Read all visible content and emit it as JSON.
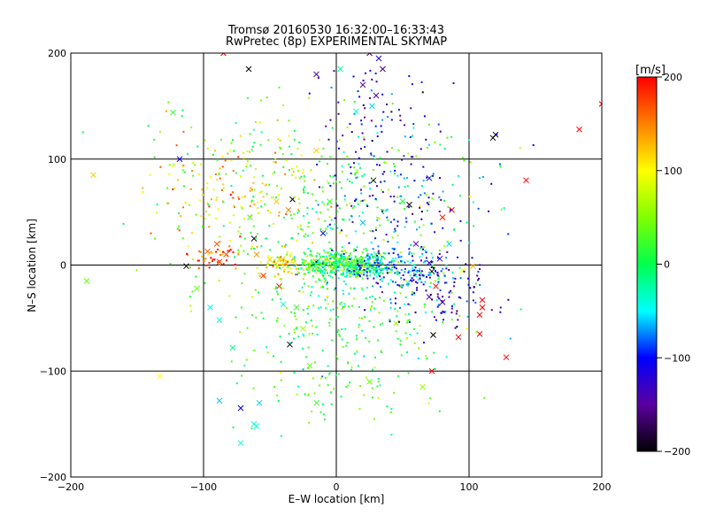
{
  "chart_data": {
    "type": "scatter",
    "title": "Tromsø 20160530 16:32:00–16:33:43",
    "subtitle": "RwPretec (8p) EXPERIMENTAL SKYMAP",
    "xlabel": "E–W location [km]",
    "ylabel": "N–S location [km]",
    "xlim": [
      -200,
      200
    ],
    "ylim": [
      -200,
      200
    ],
    "xticks": [
      -200,
      -100,
      0,
      100,
      200
    ],
    "yticks": [
      -200,
      -100,
      0,
      100,
      200
    ],
    "x_tick_labels": [
      "−200",
      "−100",
      "0",
      "100",
      "200"
    ],
    "y_tick_labels": [
      "−200",
      "−100",
      "0",
      "100",
      "200"
    ],
    "grid": true,
    "colorbar": {
      "label": "[m/s]",
      "range": [
        -200,
        200
      ],
      "ticks": [
        200,
        100,
        0,
        -100,
        -200
      ],
      "tick_labels": [
        "200",
        "100",
        "0",
        "−100",
        "−200"
      ],
      "colormap": "rainbow"
    },
    "marker_legend": "small dots and crosses",
    "points": [
      {
        "x": -123,
        "y": 144,
        "v": 20,
        "m": "x"
      },
      {
        "x": -118,
        "y": 100,
        "v": -100,
        "m": "x"
      },
      {
        "x": -183,
        "y": 85,
        "v": 120,
        "m": "x"
      },
      {
        "x": -188,
        "y": -15,
        "v": 40,
        "m": "x"
      },
      {
        "x": -133,
        "y": -105,
        "v": 100,
        "m": "x"
      },
      {
        "x": -113,
        "y": -1,
        "v": -200,
        "m": "x"
      },
      {
        "x": -105,
        "y": -22,
        "v": 40,
        "m": "x"
      },
      {
        "x": -97,
        "y": 13,
        "v": 160,
        "m": "x"
      },
      {
        "x": -88,
        "y": 3,
        "v": 180,
        "m": "x"
      },
      {
        "x": -83,
        "y": 10,
        "v": 170,
        "m": "x"
      },
      {
        "x": -90,
        "y": 20,
        "v": 170,
        "m": "x"
      },
      {
        "x": -95,
        "y": -40,
        "v": -40,
        "m": "x"
      },
      {
        "x": -88,
        "y": -52,
        "v": -40,
        "m": "x"
      },
      {
        "x": -78,
        "y": -78,
        "v": -20,
        "m": "x"
      },
      {
        "x": -88,
        "y": -128,
        "v": -60,
        "m": "x"
      },
      {
        "x": -72,
        "y": -135,
        "v": -100,
        "m": "x"
      },
      {
        "x": -62,
        "y": -150,
        "v": -40,
        "m": "x"
      },
      {
        "x": -58,
        "y": -130,
        "v": -60,
        "m": "x"
      },
      {
        "x": -72,
        "y": -168,
        "v": -40,
        "m": "x"
      },
      {
        "x": -60,
        "y": -152,
        "v": -40,
        "m": "x"
      },
      {
        "x": -66,
        "y": 185,
        "v": -200,
        "m": "x"
      },
      {
        "x": -85,
        "y": 200,
        "v": 200,
        "m": "x"
      },
      {
        "x": -33,
        "y": 62,
        "v": -200,
        "m": "x"
      },
      {
        "x": -36,
        "y": 52,
        "v": 150,
        "m": "x"
      },
      {
        "x": -45,
        "y": 60,
        "v": 120,
        "m": "x"
      },
      {
        "x": -62,
        "y": 25,
        "v": -200,
        "m": "x"
      },
      {
        "x": -65,
        "y": 45,
        "v": 20,
        "m": "x"
      },
      {
        "x": -55,
        "y": -10,
        "v": 180,
        "m": "x"
      },
      {
        "x": -43,
        "y": -20,
        "v": 200,
        "m": "x"
      },
      {
        "x": -40,
        "y": -37,
        "v": -40,
        "m": "x"
      },
      {
        "x": -30,
        "y": -40,
        "v": 20,
        "m": "x"
      },
      {
        "x": -35,
        "y": -75,
        "v": -200,
        "m": "x"
      },
      {
        "x": -25,
        "y": -60,
        "v": 60,
        "m": "x"
      },
      {
        "x": -20,
        "y": -95,
        "v": 40,
        "m": "x"
      },
      {
        "x": -15,
        "y": 3,
        "v": -200,
        "m": "x"
      },
      {
        "x": -10,
        "y": 30,
        "v": -100,
        "m": "x"
      },
      {
        "x": -5,
        "y": 60,
        "v": 20,
        "m": "x"
      },
      {
        "x": -15,
        "y": 108,
        "v": 120,
        "m": "x"
      },
      {
        "x": -15,
        "y": 180,
        "v": -160,
        "m": "x"
      },
      {
        "x": 3,
        "y": 185,
        "v": -20,
        "m": "x"
      },
      {
        "x": 20,
        "y": 170,
        "v": -160,
        "m": "x"
      },
      {
        "x": 30,
        "y": 160,
        "v": -140,
        "m": "x"
      },
      {
        "x": 25,
        "y": 200,
        "v": -160,
        "m": "x"
      },
      {
        "x": 32,
        "y": 195,
        "v": -120,
        "m": "x"
      },
      {
        "x": 35,
        "y": 185,
        "v": -160,
        "m": "x"
      },
      {
        "x": 27,
        "y": 150,
        "v": -60,
        "m": "x"
      },
      {
        "x": 15,
        "y": 145,
        "v": -40,
        "m": "x"
      },
      {
        "x": 28,
        "y": 80,
        "v": -200,
        "m": "x"
      },
      {
        "x": 20,
        "y": 40,
        "v": -60,
        "m": "x"
      },
      {
        "x": 30,
        "y": 10,
        "v": -20,
        "m": "x"
      },
      {
        "x": 55,
        "y": 57,
        "v": -200,
        "m": "x"
      },
      {
        "x": 50,
        "y": 60,
        "v": 10,
        "m": "x"
      },
      {
        "x": 80,
        "y": 45,
        "v": 190,
        "m": "x"
      },
      {
        "x": 87,
        "y": 52,
        "v": 200,
        "m": "x"
      },
      {
        "x": 70,
        "y": 82,
        "v": -100,
        "m": "x"
      },
      {
        "x": 85,
        "y": 20,
        "v": -60,
        "m": "x"
      },
      {
        "x": 60,
        "y": 20,
        "v": -140,
        "m": "x"
      },
      {
        "x": 70,
        "y": 2,
        "v": -120,
        "m": "x"
      },
      {
        "x": 72,
        "y": -6,
        "v": -200,
        "m": "x"
      },
      {
        "x": 78,
        "y": 6,
        "v": -140,
        "m": "x"
      },
      {
        "x": 75,
        "y": -20,
        "v": 200,
        "m": "x"
      },
      {
        "x": 70,
        "y": -30,
        "v": -140,
        "m": "x"
      },
      {
        "x": 80,
        "y": -35,
        "v": -120,
        "m": "x"
      },
      {
        "x": 110,
        "y": -40,
        "v": 200,
        "m": "x"
      },
      {
        "x": 108,
        "y": -47,
        "v": 200,
        "m": "x"
      },
      {
        "x": 110,
        "y": -33,
        "v": 200,
        "m": "x"
      },
      {
        "x": 95,
        "y": -5,
        "v": 100,
        "m": "x"
      },
      {
        "x": 103,
        "y": -1,
        "v": 130,
        "m": "x"
      },
      {
        "x": 73,
        "y": -66,
        "v": -200,
        "m": "x"
      },
      {
        "x": 92,
        "y": -68,
        "v": 200,
        "m": "x"
      },
      {
        "x": 72,
        "y": -100,
        "v": 200,
        "m": "x"
      },
      {
        "x": 108,
        "y": -65,
        "v": 200,
        "m": "x"
      },
      {
        "x": 128,
        "y": -87,
        "v": 200,
        "m": "x"
      },
      {
        "x": 120,
        "y": 123,
        "v": -200,
        "m": "x"
      },
      {
        "x": 118,
        "y": 120,
        "v": -200,
        "m": "x"
      },
      {
        "x": 143,
        "y": 80,
        "v": 200,
        "m": "x"
      },
      {
        "x": 183,
        "y": 128,
        "v": 200,
        "m": "x"
      },
      {
        "x": 200,
        "y": 152,
        "v": 200,
        "m": "x"
      },
      {
        "x": 65,
        "y": -115,
        "v": 60,
        "m": "x"
      },
      {
        "x": -15,
        "y": -130,
        "v": 20,
        "m": "x"
      },
      {
        "x": 25,
        "y": -110,
        "v": 40,
        "m": "x"
      },
      {
        "x": 45,
        "y": -55,
        "v": 60,
        "m": "x"
      },
      {
        "x": -60,
        "y": 10,
        "v": 140,
        "m": "x"
      },
      {
        "x": -50,
        "y": 5,
        "v": 120,
        "m": "x"
      }
    ]
  }
}
